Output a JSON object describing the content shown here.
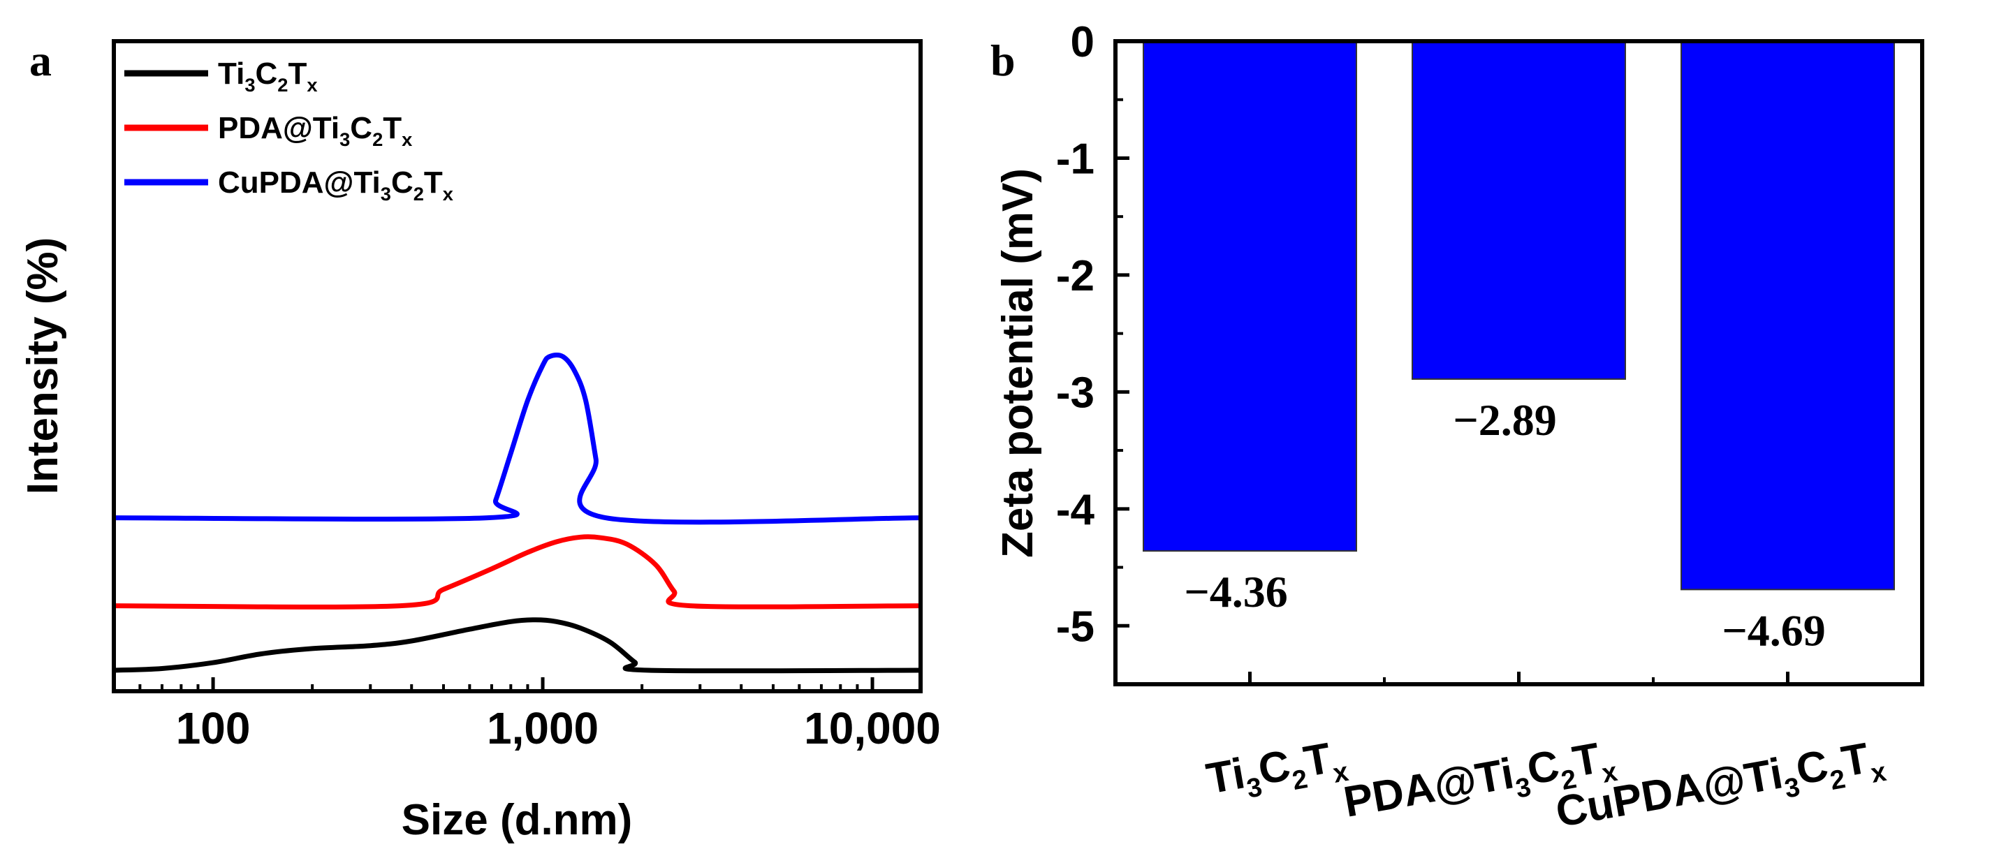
{
  "chart_data": [
    {
      "panel": "a",
      "type": "line",
      "xlabel": "Size (d.nm)",
      "ylabel": "Intensity (%)",
      "xscale": "log",
      "xlim": [
        50,
        14000
      ],
      "x_ticks": [
        {
          "value": 100,
          "label": "100"
        },
        {
          "value": 1000,
          "label": "1,000"
        },
        {
          "value": 10000,
          "label": "10,000"
        }
      ],
      "y_tick_labels": false,
      "legend_position": "top-left",
      "series": [
        {
          "name": "Ti3C2Tx",
          "color": "#000000",
          "offset": 0,
          "points": [
            [
              50,
              0.0
            ],
            [
              70,
              0.3
            ],
            [
              100,
              1.3
            ],
            [
              140,
              2.8
            ],
            [
              200,
              3.7
            ],
            [
              300,
              4.2
            ],
            [
              400,
              5.0
            ],
            [
              600,
              7.0
            ],
            [
              800,
              8.3
            ],
            [
              950,
              8.6
            ],
            [
              1100,
              8.3
            ],
            [
              1300,
              7.2
            ],
            [
              1600,
              4.8
            ],
            [
              1900,
              1.4
            ],
            [
              2100,
              0.0
            ],
            [
              14000,
              0.0
            ]
          ]
        },
        {
          "name": "PDA@Ti3C2Tx",
          "color": "#ff0000",
          "offset": 11,
          "points": [
            [
              50,
              0.0
            ],
            [
              370,
              0.0
            ],
            [
              500,
              2.8
            ],
            [
              700,
              6.3
            ],
            [
              900,
              9.1
            ],
            [
              1100,
              10.9
            ],
            [
              1300,
              11.7
            ],
            [
              1500,
              11.6
            ],
            [
              1800,
              10.5
            ],
            [
              2200,
              7.0
            ],
            [
              2500,
              2.5
            ],
            [
              2800,
              0.0
            ],
            [
              14000,
              0.0
            ]
          ]
        },
        {
          "name": "CuPDA@Ti3C2Tx",
          "color": "#0000ff",
          "offset": 26,
          "points": [
            [
              50,
              0.0
            ],
            [
              680,
              0.0
            ],
            [
              720,
              3.0
            ],
            [
              800,
              11.0
            ],
            [
              900,
              20.0
            ],
            [
              1000,
              26.0
            ],
            [
              1050,
              27.5
            ],
            [
              1150,
              27.5
            ],
            [
              1250,
              25.0
            ],
            [
              1350,
              20.0
            ],
            [
              1450,
              10.0
            ],
            [
              1550,
              0.0
            ],
            [
              14000,
              0.0
            ]
          ]
        }
      ]
    },
    {
      "panel": "b",
      "type": "bar",
      "ylabel": "Zeta potential (mV)",
      "ylim": [
        -5.5,
        0
      ],
      "y_ticks": [
        0,
        -1,
        -2,
        -3,
        -4,
        -5
      ],
      "y_tick_labels": [
        "0",
        "-1",
        "-2",
        "-3",
        "-4",
        "-5"
      ],
      "categories": [
        "Ti3C2Tx",
        "PDA@Ti3C2Tx",
        "CuPDA@Ti3C2Tx"
      ],
      "values": [
        -4.36,
        -2.89,
        -4.69
      ],
      "value_labels": [
        "−4.36",
        "−2.89",
        "−4.69"
      ],
      "bar_color": "#0000ff"
    }
  ]
}
